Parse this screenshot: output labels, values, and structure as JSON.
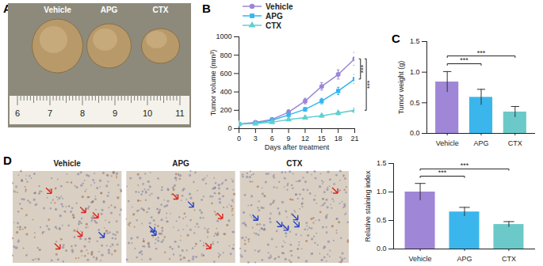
{
  "chart_data": [
    {
      "type": "image",
      "title": "A",
      "labels": [
        "Vehicle",
        "APG",
        "CTX"
      ],
      "ruler_ticks": [
        6,
        7,
        8,
        9,
        10,
        11
      ]
    },
    {
      "type": "line",
      "title": "B",
      "x_label": "Days after treatment",
      "y_label": "Tumor volume (mm³)",
      "x": [
        0,
        3,
        6,
        9,
        12,
        15,
        18,
        21
      ],
      "xlim": [
        0,
        21
      ],
      "xticks": [
        0,
        3,
        6,
        9,
        12,
        15,
        18,
        21
      ],
      "ylim": [
        0,
        1000
      ],
      "yticks": [
        0,
        200,
        400,
        600,
        800,
        1000
      ],
      "legend": "top",
      "series": [
        {
          "name": "Vehicle",
          "color": "#9b87d3",
          "marker": "circle",
          "values": [
            50,
            70,
            100,
            180,
            300,
            460,
            590,
            760
          ],
          "errors": [
            15,
            15,
            20,
            25,
            30,
            40,
            50,
            70
          ]
        },
        {
          "name": "APG",
          "color": "#35b6f0",
          "marker": "square",
          "values": [
            50,
            60,
            90,
            150,
            210,
            300,
            410,
            540
          ],
          "errors": [
            10,
            12,
            15,
            20,
            20,
            30,
            40,
            50
          ]
        },
        {
          "name": "CTX",
          "color": "#5fd0d0",
          "marker": "triangle",
          "values": [
            50,
            55,
            70,
            100,
            120,
            140,
            170,
            200
          ],
          "errors": [
            8,
            10,
            10,
            12,
            15,
            15,
            20,
            25
          ]
        }
      ],
      "annotations": [
        {
          "from": "Vehicle",
          "to": "APG",
          "text": "***"
        },
        {
          "from": "Vehicle",
          "to": "CTX",
          "text": "***"
        }
      ]
    },
    {
      "type": "bar",
      "title": "C",
      "y_label": "Tumor weight (g)",
      "categories": [
        "Vehicle",
        "APG",
        "CTX"
      ],
      "values": [
        0.84,
        0.59,
        0.35
      ],
      "errors": [
        0.17,
        0.13,
        0.09
      ],
      "colors": [
        "#9f86d6",
        "#3bb6ec",
        "#6bc9c9"
      ],
      "ylim": [
        0,
        1.5
      ],
      "yticks": [
        {
          "value": 0,
          "label": "0.0"
        },
        {
          "value": 0.5,
          "label": "0.5"
        },
        {
          "value": 1,
          "label": "1.0"
        },
        {
          "value": 1.5,
          "label": "1.5"
        }
      ],
      "annotations": [
        {
          "from": "Vehicle",
          "to": "APG",
          "text": "***"
        },
        {
          "from": "Vehicle",
          "to": "CTX",
          "text": "***"
        }
      ]
    },
    {
      "type": "image",
      "title": "D",
      "labels": [
        "Vehicle",
        "APG",
        "CTX"
      ]
    },
    {
      "type": "bar",
      "y_label": "Relative staining index",
      "categories": [
        "Vehicle",
        "APG",
        "CTX"
      ],
      "values": [
        1.0,
        0.65,
        0.43
      ],
      "errors": [
        0.15,
        0.08,
        0.05
      ],
      "colors": [
        "#9f86d6",
        "#3bb6ec",
        "#6bc9c9"
      ],
      "ylim": [
        0,
        1.5
      ],
      "yticks": [
        {
          "value": 0,
          "label": "0.0"
        },
        {
          "value": 0.5,
          "label": "0.5"
        },
        {
          "value": 1,
          "label": "1.0"
        },
        {
          "value": 1.5,
          "label": "1.5"
        }
      ],
      "annotations": [
        {
          "from": "Vehicle",
          "to": "APG",
          "text": "***"
        },
        {
          "from": "Vehicle",
          "to": "CTX",
          "text": "***"
        }
      ]
    }
  ]
}
